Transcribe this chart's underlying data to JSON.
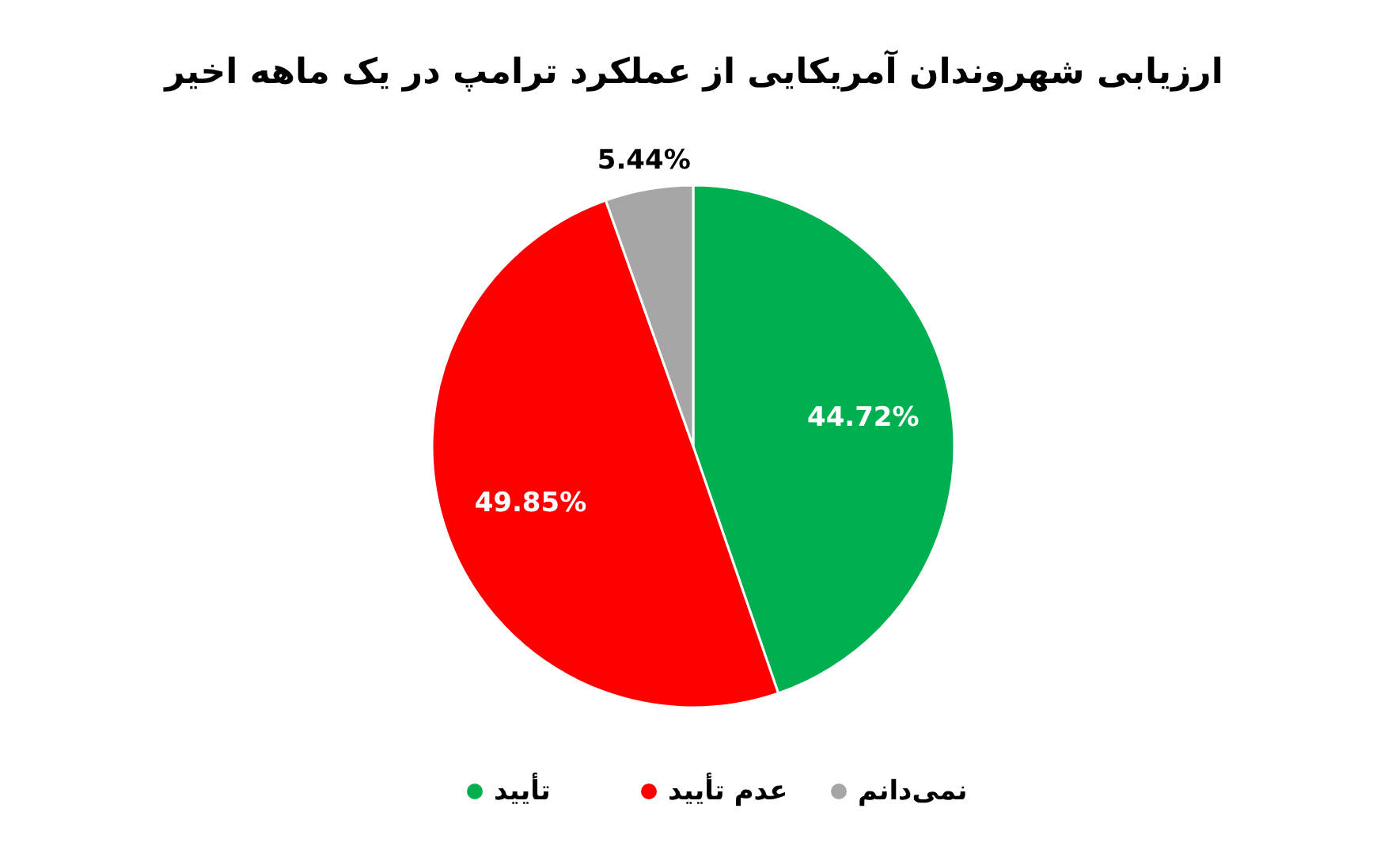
{
  "chart_data": {
    "type": "pie",
    "title": "ارزیابی شهروندان آمریکایی از عملکرد ترامپ در یک ماهه اخیر",
    "categories": [
      "تأیید",
      "عدم تأیید",
      "نمی‌دانم"
    ],
    "values": [
      44.72,
      49.85,
      5.44
    ],
    "colors": [
      "#00b050",
      "#ff0000",
      "#a6a6a6"
    ],
    "value_labels": [
      "44.72%",
      "49.85%",
      "5.44%"
    ],
    "legend": "bottom"
  }
}
